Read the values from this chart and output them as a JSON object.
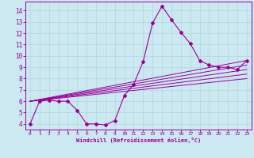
{
  "xlabel": "Windchill (Refroidissement éolien,°C)",
  "bg_color": "#cce8f0",
  "line_color": "#990099",
  "xlim": [
    -0.5,
    23.5
  ],
  "ylim": [
    3.5,
    14.8
  ],
  "xticks": [
    0,
    1,
    2,
    3,
    4,
    5,
    6,
    7,
    8,
    9,
    10,
    11,
    12,
    13,
    14,
    15,
    16,
    17,
    18,
    19,
    20,
    21,
    22,
    23
  ],
  "yticks": [
    4,
    5,
    6,
    7,
    8,
    9,
    10,
    11,
    12,
    13,
    14
  ],
  "main_series_x": [
    0,
    1,
    2,
    3,
    4,
    5,
    6,
    7,
    8,
    9,
    10,
    11,
    12,
    13,
    14,
    15,
    16,
    17,
    18,
    19,
    20,
    21,
    22,
    23
  ],
  "main_series_y": [
    4.0,
    6.0,
    6.1,
    6.0,
    6.0,
    5.2,
    4.0,
    4.0,
    3.9,
    4.3,
    6.5,
    7.5,
    9.5,
    12.9,
    14.4,
    13.2,
    12.1,
    11.1,
    9.6,
    9.2,
    9.0,
    9.0,
    8.8,
    9.6
  ],
  "trend_lines": [
    {
      "x": [
        0,
        23
      ],
      "y": [
        6.0,
        9.6
      ]
    },
    {
      "x": [
        0,
        23
      ],
      "y": [
        6.0,
        9.2
      ]
    },
    {
      "x": [
        0,
        23
      ],
      "y": [
        6.0,
        8.8
      ]
    },
    {
      "x": [
        0,
        23
      ],
      "y": [
        6.0,
        8.4
      ]
    },
    {
      "x": [
        0,
        23
      ],
      "y": [
        6.0,
        8.0
      ]
    }
  ]
}
